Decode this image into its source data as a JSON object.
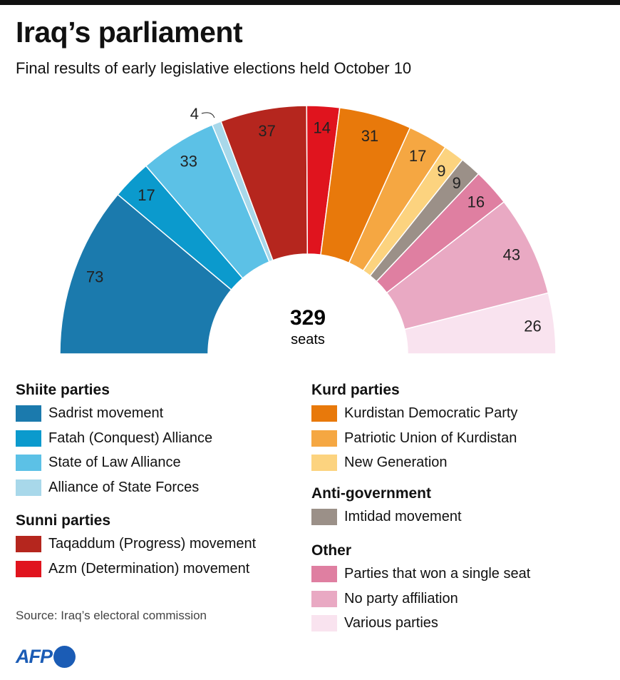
{
  "title": "Iraq’s parliament",
  "subtitle": "Final results of early legislative elections held October 10",
  "source": "Source: Iraq’s electoral commission",
  "logo": "AFP",
  "chart_data": {
    "type": "pie",
    "variant": "half-donut",
    "total": 329,
    "total_label": "329",
    "total_unit": "seats",
    "slices": [
      {
        "name": "Sadrist movement",
        "value": 73,
        "color": "#1b7aad",
        "group": "Shiite parties"
      },
      {
        "name": "Fatah (Conquest) Alliance",
        "value": 17,
        "color": "#0b9acd",
        "group": "Shiite parties"
      },
      {
        "name": "State of Law Alliance",
        "value": 33,
        "color": "#5cc1e6",
        "group": "Shiite parties"
      },
      {
        "name": "Alliance of State Forces",
        "value": 4,
        "color": "#a8d8ea",
        "group": "Shiite parties"
      },
      {
        "name": "Taqaddum (Progress) movement",
        "value": 37,
        "color": "#b5261e",
        "group": "Sunni parties"
      },
      {
        "name": "Azm (Determination) movement",
        "value": 14,
        "color": "#e0141e",
        "group": "Sunni parties"
      },
      {
        "name": "Kurdistan Democratic Party",
        "value": 31,
        "color": "#e8790b",
        "group": "Kurd parties"
      },
      {
        "name": "Patriotic Union of Kurdistan",
        "value": 17,
        "color": "#f5a742",
        "group": "Kurd parties"
      },
      {
        "name": "New Generation",
        "value": 9,
        "color": "#fcd37f",
        "group": "Kurd parties"
      },
      {
        "name": "Imtidad movement",
        "value": 9,
        "color": "#9b9088",
        "group": "Anti-government"
      },
      {
        "name": "Parties that won a single seat",
        "value": 16,
        "color": "#df7fa1",
        "group": "Other"
      },
      {
        "name": "No party affiliation",
        "value": 43,
        "color": "#e9a9c3",
        "group": "Other"
      },
      {
        "name": "Various parties",
        "value": 26,
        "color": "#f9e3ef",
        "group": "Other"
      }
    ],
    "legend": [
      {
        "heading": "Shiite parties",
        "items": [
          0,
          1,
          2,
          3
        ]
      },
      {
        "heading": "Sunni parties",
        "items": [
          4,
          5
        ]
      },
      {
        "heading": "Kurd parties",
        "items": [
          6,
          7,
          8
        ]
      },
      {
        "heading": "Anti-government",
        "items": [
          9
        ]
      },
      {
        "heading": "Other",
        "items": [
          10,
          11,
          12
        ]
      }
    ]
  }
}
